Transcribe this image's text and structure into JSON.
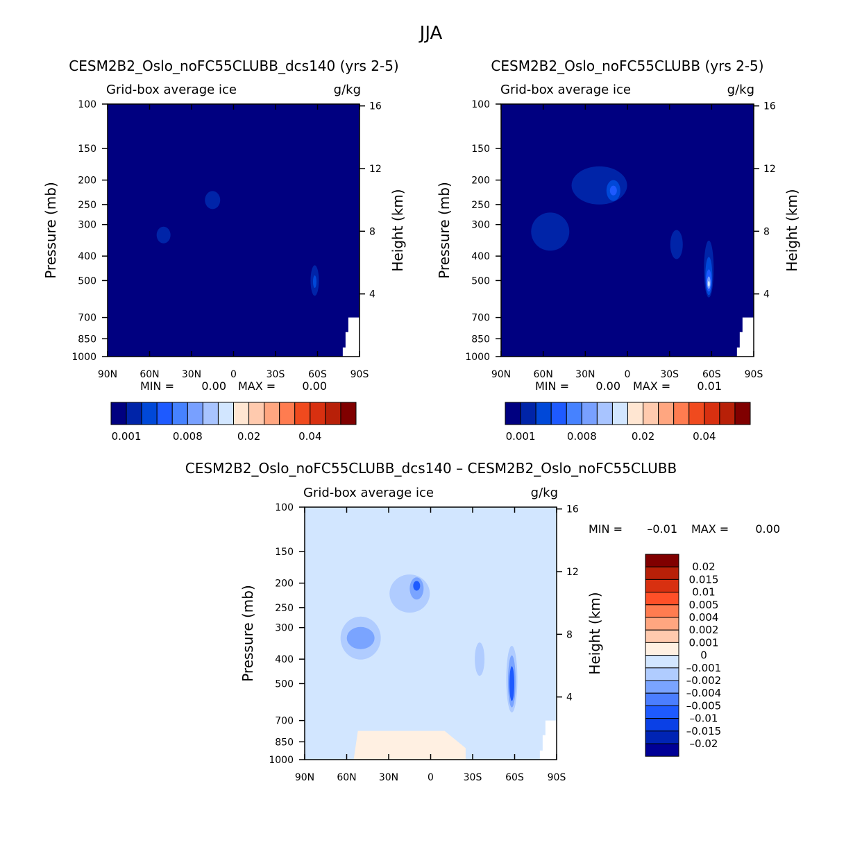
{
  "figure_title": "JJA",
  "colors": {
    "cbar_top": [
      "#000080",
      "#0024a8",
      "#0048d8",
      "#1e5aff",
      "#4682ff",
      "#78a0ff",
      "#a8c4ff",
      "#d2e6ff",
      "#ffe6d2",
      "#ffcaae",
      "#ffa680",
      "#ff7c50",
      "#f04a1e",
      "#d83010",
      "#b82008",
      "#800000"
    ],
    "cbar_diff_high_to_low": [
      "#800000",
      "#b82008",
      "#d83010",
      "#ff5028",
      "#ff7c50",
      "#ffa680",
      "#ffcaae",
      "#fff0e2",
      "#d2e6ff",
      "#b0ccff",
      "#7aa4ff",
      "#4b7eff",
      "#1e5aff",
      "#0a40e6",
      "#0024b4",
      "#000096"
    ]
  },
  "chart_data": [
    {
      "type": "contour",
      "title": "CESM2B2_Oslo_noFC55CLUBB_dcs140 (yrs 2-5)",
      "left_label": "Grid-box average ice",
      "right_label": "g/kg",
      "ylabel": "Pressure (mb)",
      "ylabel_right": "Height (km)",
      "x_ticks": [
        "90N",
        "60N",
        "30N",
        "0",
        "30S",
        "60S",
        "90S"
      ],
      "y_ticks": [
        "100",
        "150",
        "200",
        "250",
        "300",
        "400",
        "500",
        "700",
        "850",
        "1000"
      ],
      "height_ticks": [
        "16",
        "12",
        "8",
        "4"
      ],
      "min_label": "MIN =",
      "min_value": "0.00",
      "max_label": "MAX =",
      "max_value": "0.00",
      "colorbar_labels": [
        "0.001",
        "0.008",
        "0.02",
        "0.04"
      ],
      "xlim": [
        90,
        -90
      ],
      "ylim": [
        1000,
        100
      ],
      "blobs": [
        {
          "lat": 50,
          "p": 330,
          "level": 1
        },
        {
          "lat": 15,
          "p": 240,
          "level": 1
        },
        {
          "lat": -58,
          "p": 500,
          "level": 1
        },
        {
          "lat": -58,
          "p": 505,
          "level": 2
        }
      ]
    },
    {
      "type": "contour",
      "title": "CESM2B2_Oslo_noFC55CLUBB (yrs 2-5)",
      "left_label": "Grid-box average ice",
      "right_label": "g/kg",
      "ylabel": "Pressure (mb)",
      "ylabel_right": "Height (km)",
      "x_ticks": [
        "90N",
        "60N",
        "30N",
        "0",
        "30S",
        "60S",
        "90S"
      ],
      "y_ticks": [
        "100",
        "150",
        "200",
        "250",
        "300",
        "400",
        "500",
        "700",
        "850",
        "1000"
      ],
      "height_ticks": [
        "16",
        "12",
        "8",
        "4"
      ],
      "min_label": "MIN =",
      "min_value": "0.00",
      "max_label": "MAX =",
      "max_value": "0.01",
      "colorbar_labels": [
        "0.001",
        "0.008",
        "0.02",
        "0.04"
      ],
      "xlim": [
        90,
        -90
      ],
      "ylim": [
        1000,
        100
      ],
      "blobs": [
        {
          "lat": 55,
          "p": 320,
          "level": 1
        },
        {
          "lat": 20,
          "p": 210,
          "level": 1
        },
        {
          "lat": 10,
          "p": 220,
          "level": 2
        },
        {
          "lat": 10,
          "p": 220,
          "level": 3
        },
        {
          "lat": -35,
          "p": 360,
          "level": 1
        },
        {
          "lat": -58,
          "p": 450,
          "level": 1
        },
        {
          "lat": -58,
          "p": 480,
          "level": 2
        },
        {
          "lat": -58,
          "p": 500,
          "level": 3
        },
        {
          "lat": -58,
          "p": 510,
          "level": 4
        },
        {
          "lat": -58,
          "p": 515,
          "level": 5
        }
      ]
    },
    {
      "type": "contour",
      "title": "CESM2B2_Oslo_noFC55CLUBB_dcs140 – CESM2B2_Oslo_noFC55CLUBB",
      "left_label": "Grid-box average ice",
      "right_label": "g/kg",
      "ylabel": "Pressure (mb)",
      "ylabel_right": "Height (km)",
      "x_ticks": [
        "90N",
        "60N",
        "30N",
        "0",
        "30S",
        "60S",
        "90S"
      ],
      "y_ticks": [
        "100",
        "150",
        "200",
        "250",
        "300",
        "400",
        "500",
        "700",
        "850",
        "1000"
      ],
      "height_ticks": [
        "16",
        "12",
        "8",
        "4"
      ],
      "min_label": "MIN =",
      "min_value": "–0.01",
      "max_label": "MAX =",
      "max_value": "0.00",
      "colorbar_labels": [
        "0.02",
        "0.015",
        "0.01",
        "0.005",
        "0.004",
        "0.002",
        "0.001",
        "0",
        "–0.001",
        "–0.002",
        "–0.004",
        "–0.005",
        "–0.01",
        "–0.015",
        "–0.02"
      ],
      "xlim": [
        90,
        -90
      ],
      "ylim": [
        1000,
        100
      ],
      "blobs": [
        {
          "lat": 50,
          "p": 330,
          "level": -1
        },
        {
          "lat": 15,
          "p": 220,
          "level": -1
        },
        {
          "lat": 50,
          "p": 330,
          "level": -2
        },
        {
          "lat": 10,
          "p": 210,
          "level": -2
        },
        {
          "lat": 10,
          "p": 205,
          "level": -3
        },
        {
          "lat": -35,
          "p": 400,
          "level": -1
        },
        {
          "lat": -58,
          "p": 480,
          "level": -1
        },
        {
          "lat": -58,
          "p": 490,
          "level": -2
        },
        {
          "lat": -58,
          "p": 500,
          "level": -3
        }
      ]
    }
  ]
}
